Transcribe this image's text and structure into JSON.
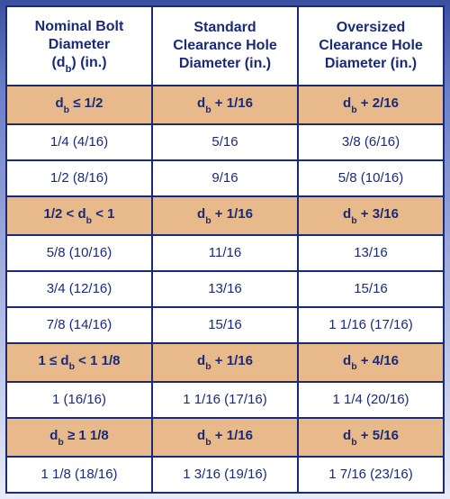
{
  "table": {
    "border_color": "#1a2a7a",
    "text_color": "#1a2a7a",
    "formula_row_bg": "#e8b98a",
    "data_row_bg": "#ffffff",
    "gradient_top": "#3a4fa0",
    "gradient_bottom": "#e8ecf8",
    "font_family": "Myriad Pro, Segoe UI, Arial, sans-serif",
    "header_fontsize_pt": 12,
    "body_fontsize_pt": 11,
    "columns": [
      {
        "title_html": "Nominal Bolt<br>Diameter<br>(d<span class=\"sub\">b</span>) (in.)"
      },
      {
        "title_html": "Standard<br>Clearance Hole<br>Diameter (in.)"
      },
      {
        "title_html": "Oversized<br>Clearance Hole<br>Diameter (in.)"
      }
    ],
    "rows": [
      {
        "type": "formula",
        "cells_html": [
          "d<span class=\"sub\">b</span> ≤ 1/2",
          "d<span class=\"sub\">b</span> + 1/16",
          "d<span class=\"sub\">b</span> + 2/16"
        ]
      },
      {
        "type": "data",
        "cells_html": [
          "1/4 (4/16)",
          "5/16",
          "3/8 (6/16)"
        ]
      },
      {
        "type": "data",
        "cells_html": [
          "1/2 (8/16)",
          "9/16",
          "5/8 (10/16)"
        ]
      },
      {
        "type": "formula",
        "cells_html": [
          "1/2 < d<span class=\"sub\">b</span> < 1",
          "d<span class=\"sub\">b</span> + 1/16",
          "d<span class=\"sub\">b</span> + 3/16"
        ]
      },
      {
        "type": "data",
        "cells_html": [
          "5/8 (10/16)",
          "11/16",
          "13/16"
        ]
      },
      {
        "type": "data",
        "cells_html": [
          "3/4 (12/16)",
          "13/16",
          "15/16"
        ]
      },
      {
        "type": "data",
        "cells_html": [
          "7/8 (14/16)",
          "15/16",
          "1 1/16 (17/16)"
        ]
      },
      {
        "type": "formula",
        "cells_html": [
          "1 ≤ d<span class=\"sub\">b</span> < 1 1/8",
          "d<span class=\"sub\">b</span> + 1/16",
          "d<span class=\"sub\">b</span> + 4/16"
        ]
      },
      {
        "type": "data",
        "cells_html": [
          "1 (16/16)",
          "1 1/16 (17/16)",
          "1 1/4 (20/16)"
        ]
      },
      {
        "type": "formula",
        "cells_html": [
          "d<span class=\"sub\">b</span> ≥ 1 1/8",
          "d<span class=\"sub\">b</span> + 1/16",
          "d<span class=\"sub\">b</span> + 5/16"
        ]
      },
      {
        "type": "data",
        "cells_html": [
          "1 1/8 (18/16)",
          "1 3/16 (19/16)",
          "1 7/16 (23/16)"
        ]
      }
    ]
  }
}
